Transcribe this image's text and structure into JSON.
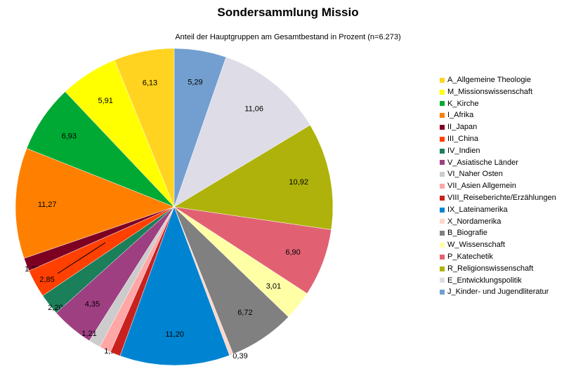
{
  "chart_data": {
    "type": "pie",
    "title": "Sondersammlung Missio",
    "subtitle": "Anteil der Hauptgruppen am Gesamtbestand in Prozent (n=6.273)",
    "legend_position": "right",
    "slices": [
      {
        "label": "A_Allgemeine Theologie",
        "value": 6.13,
        "display": "6,13",
        "color": "#FFD320"
      },
      {
        "label": "M_Missionswissenschaft",
        "value": 5.91,
        "display": "5,91",
        "color": "#FFFF00"
      },
      {
        "label": "K_Kirche",
        "value": 6.93,
        "display": "6,93",
        "color": "#00A933"
      },
      {
        "label": "I_Afrika",
        "value": 11.27,
        "display": "11,27",
        "color": "#FF8000"
      },
      {
        "label": "II_Japan",
        "value": 1.35,
        "display": "1,35",
        "color": "#7D0023"
      },
      {
        "label": "III_China",
        "value": 2.85,
        "display": "2,85",
        "color": "#FF4000"
      },
      {
        "label": "IV_Indien",
        "value": 2.2,
        "display": "2,20",
        "color": "#1B7F5A"
      },
      {
        "label": "V_Asiatische Länder",
        "value": 4.35,
        "display": "4,35",
        "color": "#9E3F82"
      },
      {
        "label": "VI_Naher Osten",
        "value": 1.21,
        "display": "1,21",
        "color": "#CCCCCC"
      },
      {
        "label": "VII_Asien Allgemein",
        "value": 1.19,
        "display": "1,19",
        "color": "#FFA6A6"
      },
      {
        "label": "VIII_Reiseberichte/Erzählungen",
        "value": 1.03,
        "display": "1,03",
        "color": "#C9211E"
      },
      {
        "label": "IX_Lateinamerika",
        "value": 11.2,
        "display": "11,20",
        "color": "#0084D1"
      },
      {
        "label": "X_Nordamerika",
        "value": 0.39,
        "display": "0,39",
        "color": "#FFD7C9"
      },
      {
        "label": "B_Biografie",
        "value": 6.72,
        "display": "6,72",
        "color": "#808080"
      },
      {
        "label": "W_Wissenschaft",
        "value": 3.01,
        "display": "3,01",
        "color": "#FFFFA6"
      },
      {
        "label": "P_Katechetik",
        "value": 6.9,
        "display": "6,90",
        "color": "#E16173"
      },
      {
        "label": "R_Religionswissenschaft",
        "value": 10.92,
        "display": "10,92",
        "color": "#AEB20A"
      },
      {
        "label": "E_Entwicklungspolitik",
        "value": 11.06,
        "display": "11,06",
        "color": "#DEDCE6"
      },
      {
        "label": "J_Kinder- und Jugendliteratur",
        "value": 5.29,
        "display": "5,29",
        "color": "#729FCF"
      }
    ]
  }
}
